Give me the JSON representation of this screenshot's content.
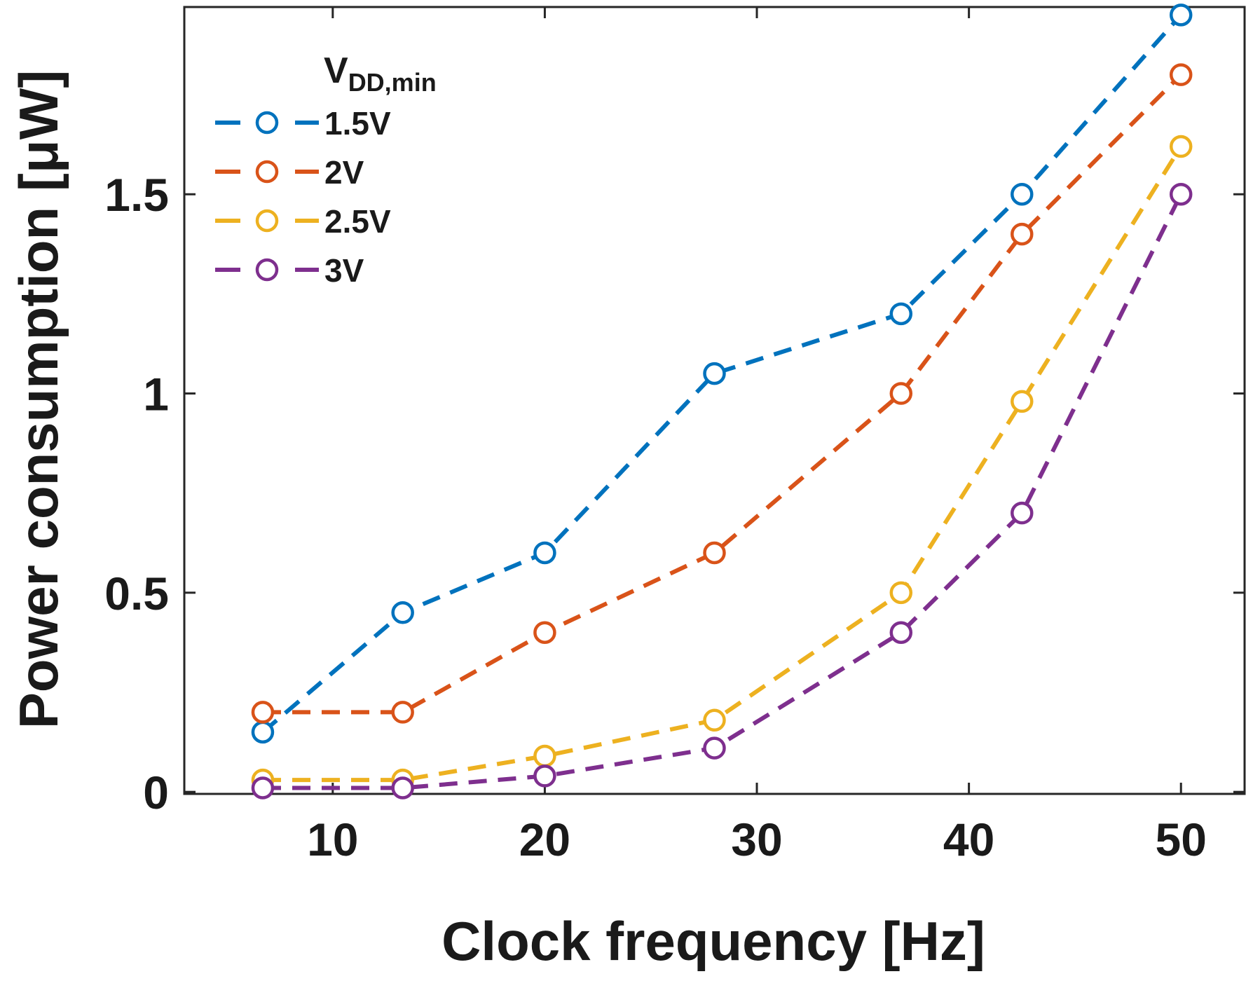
{
  "chart_data": {
    "type": "line",
    "title": "",
    "xlabel": "Clock frequency [Hz]",
    "ylabel": "Power consumption [μW]",
    "xlim": [
      3,
      53
    ],
    "ylim": [
      -0.005,
      1.97
    ],
    "xticks": [
      10,
      20,
      30,
      40,
      50
    ],
    "yticks": [
      0,
      0.5,
      1,
      1.5
    ],
    "xtick_labels": [
      "10",
      "20",
      "30",
      "40",
      "50"
    ],
    "ytick_labels": [
      "0",
      "0.5",
      "1",
      "1.5"
    ],
    "grid": false,
    "legend": {
      "title": "V",
      "title_subscript": "DD,min",
      "location": "top-left"
    },
    "x": [
      6.7,
      13.3,
      20,
      28,
      36.8,
      42.5,
      50
    ],
    "series": [
      {
        "name": "1.5V",
        "color": "#0072BD",
        "values": [
          0.15,
          0.45,
          0.6,
          1.05,
          1.2,
          1.5,
          1.95
        ]
      },
      {
        "name": "2V",
        "color": "#D95319",
        "values": [
          0.2,
          0.2,
          0.4,
          0.6,
          1.0,
          1.4,
          1.8
        ]
      },
      {
        "name": "2.5V",
        "color": "#EDB120",
        "values": [
          0.03,
          0.03,
          0.09,
          0.18,
          0.5,
          0.98,
          1.62
        ]
      },
      {
        "name": "3V",
        "color": "#7E2F8E",
        "values": [
          0.01,
          0.01,
          0.04,
          0.11,
          0.4,
          0.7,
          1.5
        ]
      }
    ]
  }
}
